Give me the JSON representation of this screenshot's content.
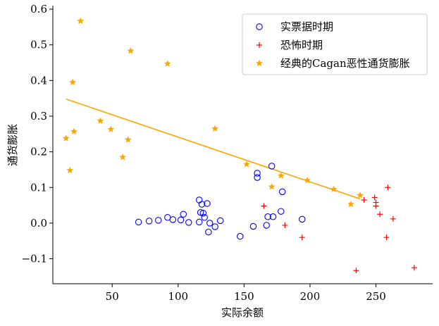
{
  "chart_data": {
    "type": "scatter",
    "title": "",
    "xlabel": "实际余额",
    "ylabel": "通货膨胀",
    "xlim": [
      5,
      293
    ],
    "ylim": [
      -0.17,
      0.61
    ],
    "xticks": [
      50,
      100,
      150,
      200,
      250
    ],
    "yticks": [
      -0.1,
      0.0,
      0.1,
      0.2,
      0.3,
      0.4,
      0.5,
      0.6
    ],
    "xtick_labels": [
      "50",
      "100",
      "150",
      "200",
      "250"
    ],
    "ytick_labels": [
      "−0.1",
      "0.0",
      "0.1",
      "0.2",
      "0.3",
      "0.4",
      "0.5",
      "0.6"
    ],
    "grid": false,
    "legend_position": "top-right",
    "series": [
      {
        "name": "实票据时期",
        "marker": "open-circle",
        "color": "#0000ff",
        "points": [
          [
            70,
            0.003
          ],
          [
            78,
            0.006
          ],
          [
            85,
            0.008
          ],
          [
            92,
            0.016
          ],
          [
            96,
            0.01
          ],
          [
            102,
            0.009
          ],
          [
            104,
            0.025
          ],
          [
            108,
            0.002
          ],
          [
            116,
            0.065
          ],
          [
            116,
            0.003
          ],
          [
            117,
            0.03
          ],
          [
            118,
            0.053
          ],
          [
            119,
            0.028
          ],
          [
            120,
            0.016
          ],
          [
            122,
            0.055
          ],
          [
            123,
            -0.025
          ],
          [
            124,
            0.0
          ],
          [
            128,
            -0.01
          ],
          [
            132,
            0.007
          ],
          [
            147,
            -0.037
          ],
          [
            157,
            -0.009
          ],
          [
            160,
            0.14
          ],
          [
            160,
            0.128
          ],
          [
            167,
            -0.006
          ],
          [
            168,
            0.018
          ],
          [
            171,
            0.16
          ],
          [
            172,
            0.018
          ],
          [
            178,
            0.033
          ],
          [
            179,
            0.088
          ],
          [
            194,
            0.011
          ]
        ]
      },
      {
        "name": "恐怖时期",
        "marker": "plus",
        "color": "#ff0000",
        "points": [
          [
            165,
            0.048
          ],
          [
            181,
            -0.006
          ],
          [
            194,
            -0.04
          ],
          [
            235,
            -0.133
          ],
          [
            241,
            0.065
          ],
          [
            249,
            0.072
          ],
          [
            250,
            0.058
          ],
          [
            250,
            0.048
          ],
          [
            253,
            0.025
          ],
          [
            258,
            -0.04
          ],
          [
            259,
            0.1
          ],
          [
            263,
            0.012
          ],
          [
            279,
            -0.125
          ]
        ]
      },
      {
        "name": "经典的Cagan恶性通货膨胀",
        "marker": "star",
        "color": "#ffa500",
        "points": [
          [
            15,
            0.238
          ],
          [
            18,
            0.148
          ],
          [
            20,
            0.395
          ],
          [
            21,
            0.257
          ],
          [
            26,
            0.567
          ],
          [
            41,
            0.287
          ],
          [
            49,
            0.263
          ],
          [
            58,
            0.185
          ],
          [
            62,
            0.234
          ],
          [
            64,
            0.483
          ],
          [
            92,
            0.447
          ],
          [
            128,
            0.265
          ],
          [
            152,
            0.165
          ],
          [
            171,
            0.102
          ],
          [
            178,
            0.133
          ],
          [
            198,
            0.12
          ],
          [
            218,
            0.095
          ],
          [
            231,
            0.053
          ],
          [
            238,
            0.078
          ]
        ]
      }
    ],
    "fit_line": {
      "color": "#ffa500",
      "points": [
        [
          15,
          0.348
        ],
        [
          238,
          0.068
        ]
      ]
    }
  }
}
